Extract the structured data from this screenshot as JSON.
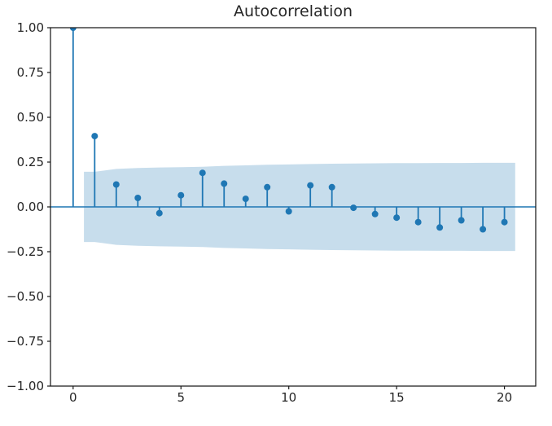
{
  "figure": {
    "title": "Autocorrelation"
  },
  "chart_data": {
    "type": "stem",
    "subtype": "acf-correlogram",
    "title": "Autocorrelation",
    "xlabel": "",
    "ylabel": "",
    "grid": false,
    "legend": null,
    "xlim": [
      -1.05,
      21.45
    ],
    "ylim": [
      -1.0,
      1.0
    ],
    "x_ticks": [
      {
        "value": 0,
        "label": "0"
      },
      {
        "value": 5,
        "label": "5"
      },
      {
        "value": 10,
        "label": "10"
      },
      {
        "value": 15,
        "label": "15"
      },
      {
        "value": 20,
        "label": "20"
      }
    ],
    "y_ticks": [
      {
        "value": 1.0,
        "label": "1.00"
      },
      {
        "value": 0.75,
        "label": "0.75"
      },
      {
        "value": 0.5,
        "label": "0.50"
      },
      {
        "value": 0.25,
        "label": "0.25"
      },
      {
        "value": 0.0,
        "label": "0.00"
      },
      {
        "value": -0.25,
        "label": "−0.25"
      },
      {
        "value": -0.5,
        "label": "−0.50"
      },
      {
        "value": -0.75,
        "label": "−0.75"
      },
      {
        "value": -1.0,
        "label": "−1.00"
      }
    ],
    "lags": [
      0,
      1,
      2,
      3,
      4,
      5,
      6,
      7,
      8,
      9,
      10,
      11,
      12,
      13,
      14,
      15,
      16,
      17,
      18,
      19,
      20
    ],
    "acf": [
      1.0,
      0.395,
      0.125,
      0.05,
      -0.035,
      0.065,
      0.19,
      0.13,
      0.045,
      0.11,
      -0.025,
      0.12,
      0.11,
      -0.005,
      -0.04,
      -0.06,
      -0.085,
      -0.115,
      -0.075,
      -0.125,
      -0.085
    ],
    "confidence_band": {
      "x": [
        0.5,
        1,
        2,
        3,
        4,
        5,
        6,
        7,
        8,
        9,
        10,
        11,
        12,
        13,
        14,
        15,
        16,
        17,
        18,
        19,
        20,
        20.5
      ],
      "upper": [
        0.196,
        0.196,
        0.212,
        0.217,
        0.22,
        0.222,
        0.224,
        0.229,
        0.232,
        0.235,
        0.237,
        0.239,
        0.241,
        0.242,
        0.243,
        0.244,
        0.244,
        0.245,
        0.245,
        0.246,
        0.246,
        0.246
      ],
      "symmetric": true
    },
    "colors": {
      "stem": "#1f77b4",
      "marker": "#1f77b4",
      "zero_line": "#1f77b4",
      "band_fill": "#1f77b4",
      "band_opacity": 0.25,
      "spine": "#1a1a1a",
      "tick_text": "#262626",
      "background": "#ffffff"
    },
    "marker_radius": 4,
    "nlags_shown": 20
  }
}
